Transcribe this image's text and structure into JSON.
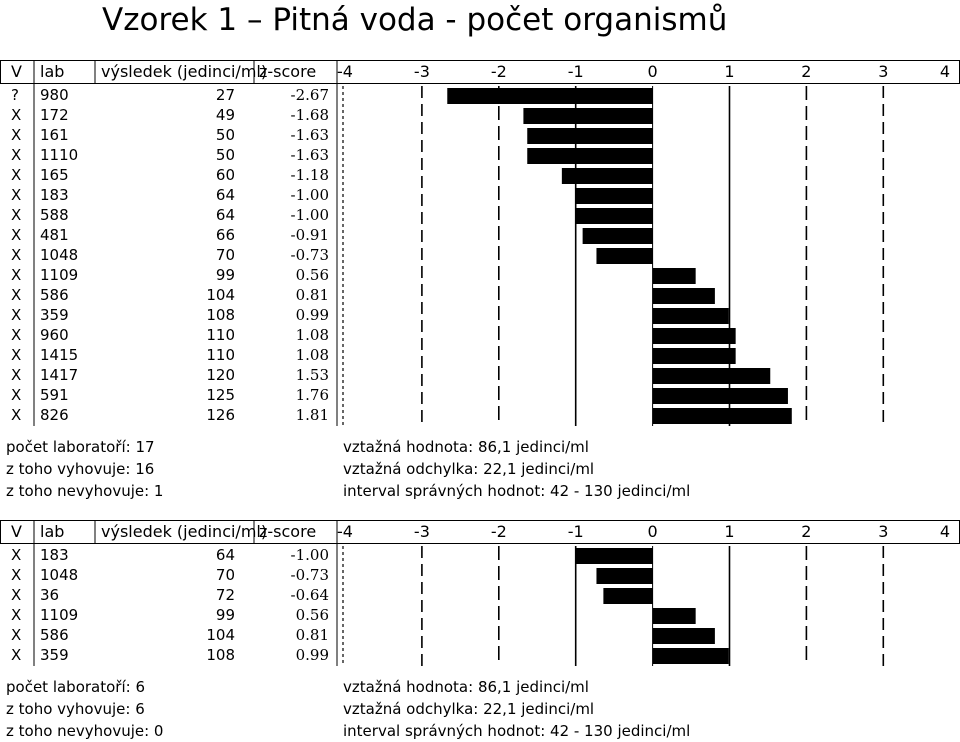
{
  "title": "Vzorek 1 – Pitná voda - počet organismů",
  "headers": {
    "v": "V",
    "lab": "lab",
    "result": "výsledek (jedinci/ml)",
    "zscore": "z-score",
    "ticks": [
      "-4",
      "-3",
      "-2",
      "-1",
      "0",
      "1",
      "2",
      "3",
      "4"
    ]
  },
  "chart_data": [
    {
      "type": "bar",
      "orientation": "horizontal",
      "xlim": [
        -4,
        4
      ],
      "rows": [
        {
          "v": "?",
          "lab": "980",
          "result": "27",
          "z": "-2.67"
        },
        {
          "v": "X",
          "lab": "172",
          "result": "49",
          "z": "-1.68"
        },
        {
          "v": "X",
          "lab": "161",
          "result": "50",
          "z": "-1.63"
        },
        {
          "v": "X",
          "lab": "1110",
          "result": "50",
          "z": "-1.63"
        },
        {
          "v": "X",
          "lab": "165",
          "result": "60",
          "z": "-1.18"
        },
        {
          "v": "X",
          "lab": "183",
          "result": "64",
          "z": "-1.00"
        },
        {
          "v": "X",
          "lab": "588",
          "result": "64",
          "z": "-1.00"
        },
        {
          "v": "X",
          "lab": "481",
          "result": "66",
          "z": "-0.91"
        },
        {
          "v": "X",
          "lab": "1048",
          "result": "70",
          "z": "-0.73"
        },
        {
          "v": "X",
          "lab": "1109",
          "result": "99",
          "z": "0.56"
        },
        {
          "v": "X",
          "lab": "586",
          "result": "104",
          "z": "0.81"
        },
        {
          "v": "X",
          "lab": "359",
          "result": "108",
          "z": "0.99"
        },
        {
          "v": "X",
          "lab": "960",
          "result": "110",
          "z": "1.08"
        },
        {
          "v": "X",
          "lab": "1415",
          "result": "110",
          "z": "1.08"
        },
        {
          "v": "X",
          "lab": "1417",
          "result": "120",
          "z": "1.53"
        },
        {
          "v": "X",
          "lab": "591",
          "result": "125",
          "z": "1.76"
        },
        {
          "v": "X",
          "lab": "826",
          "result": "126",
          "z": "1.81"
        }
      ],
      "footer": {
        "labs": "počet laboratoří: 17",
        "ok": "z toho vyhovuje: 16",
        "fail": "z toho nevyhovuje: 1",
        "ref_value": "vztažná hodnota: 86,1 jedinci/ml",
        "ref_dev": "vztažná odchylka: 22,1 jedinci/ml",
        "interval": "interval správných hodnot: 42 - 130 jedinci/ml"
      }
    },
    {
      "type": "bar",
      "orientation": "horizontal",
      "xlim": [
        -4,
        4
      ],
      "rows": [
        {
          "v": "X",
          "lab": "183",
          "result": "64",
          "z": "-1.00"
        },
        {
          "v": "X",
          "lab": "1048",
          "result": "70",
          "z": "-0.73"
        },
        {
          "v": "X",
          "lab": "36",
          "result": "72",
          "z": "-0.64"
        },
        {
          "v": "X",
          "lab": "1109",
          "result": "99",
          "z": "0.56"
        },
        {
          "v": "X",
          "lab": "586",
          "result": "104",
          "z": "0.81"
        },
        {
          "v": "X",
          "lab": "359",
          "result": "108",
          "z": "0.99"
        }
      ],
      "footer": {
        "labs": "počet laboratoří: 6",
        "ok": "z toho vyhovuje: 6",
        "fail": "z toho nevyhovuje: 0",
        "ref_value": "vztažná hodnota: 86,1 jedinci/ml",
        "ref_dev": "vztažná odchylka: 22,1 jedinci/ml",
        "interval": "interval správných hodnot: 42 - 130 jedinci/ml"
      }
    }
  ]
}
